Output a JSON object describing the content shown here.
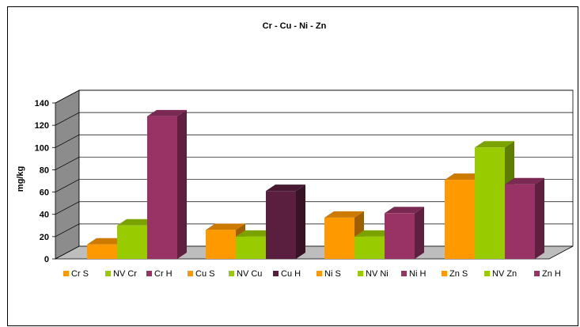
{
  "chart_data": {
    "type": "bar",
    "title": "Cr - Cu - Ni - Zn",
    "xlabel": "",
    "ylabel": "mg/kg",
    "ylim": [
      0,
      140
    ],
    "yticks": [
      0,
      20,
      40,
      60,
      80,
      100,
      120,
      140
    ],
    "grid": true,
    "three_d": true,
    "legend_position": "bottom",
    "groups": [
      "Cr",
      "Cu",
      "Ni",
      "Zn"
    ],
    "series": [
      {
        "name": "Cr S",
        "color": "#FF9900",
        "values": [
          13,
          null,
          null,
          null
        ]
      },
      {
        "name": "NV Cr",
        "color": "#99CC00",
        "values": [
          30,
          null,
          null,
          null
        ]
      },
      {
        "name": "Cr H",
        "color": "#993366",
        "values": [
          128,
          null,
          null,
          null
        ]
      },
      {
        "name": "Cu S",
        "color": "#FF9900",
        "values": [
          null,
          26,
          null,
          null
        ]
      },
      {
        "name": "NV Cu",
        "color": "#99CC00",
        "values": [
          null,
          20,
          null,
          null
        ]
      },
      {
        "name": "Cu H",
        "color": "#5A1F3E",
        "values": [
          null,
          61,
          null,
          null
        ]
      },
      {
        "name": "Ni S",
        "color": "#FF9900",
        "values": [
          null,
          null,
          37,
          null
        ]
      },
      {
        "name": "NV Ni",
        "color": "#99CC00",
        "values": [
          null,
          null,
          20,
          null
        ]
      },
      {
        "name": "Ni H",
        "color": "#993366",
        "values": [
          null,
          null,
          41,
          null
        ]
      },
      {
        "name": "Zn S",
        "color": "#FF9900",
        "values": [
          null,
          null,
          null,
          71
        ]
      },
      {
        "name": "NV Zn",
        "color": "#99CC00",
        "values": [
          null,
          null,
          null,
          100
        ]
      },
      {
        "name": "Zn H",
        "color": "#993366",
        "values": [
          null,
          null,
          null,
          67
        ]
      }
    ]
  }
}
